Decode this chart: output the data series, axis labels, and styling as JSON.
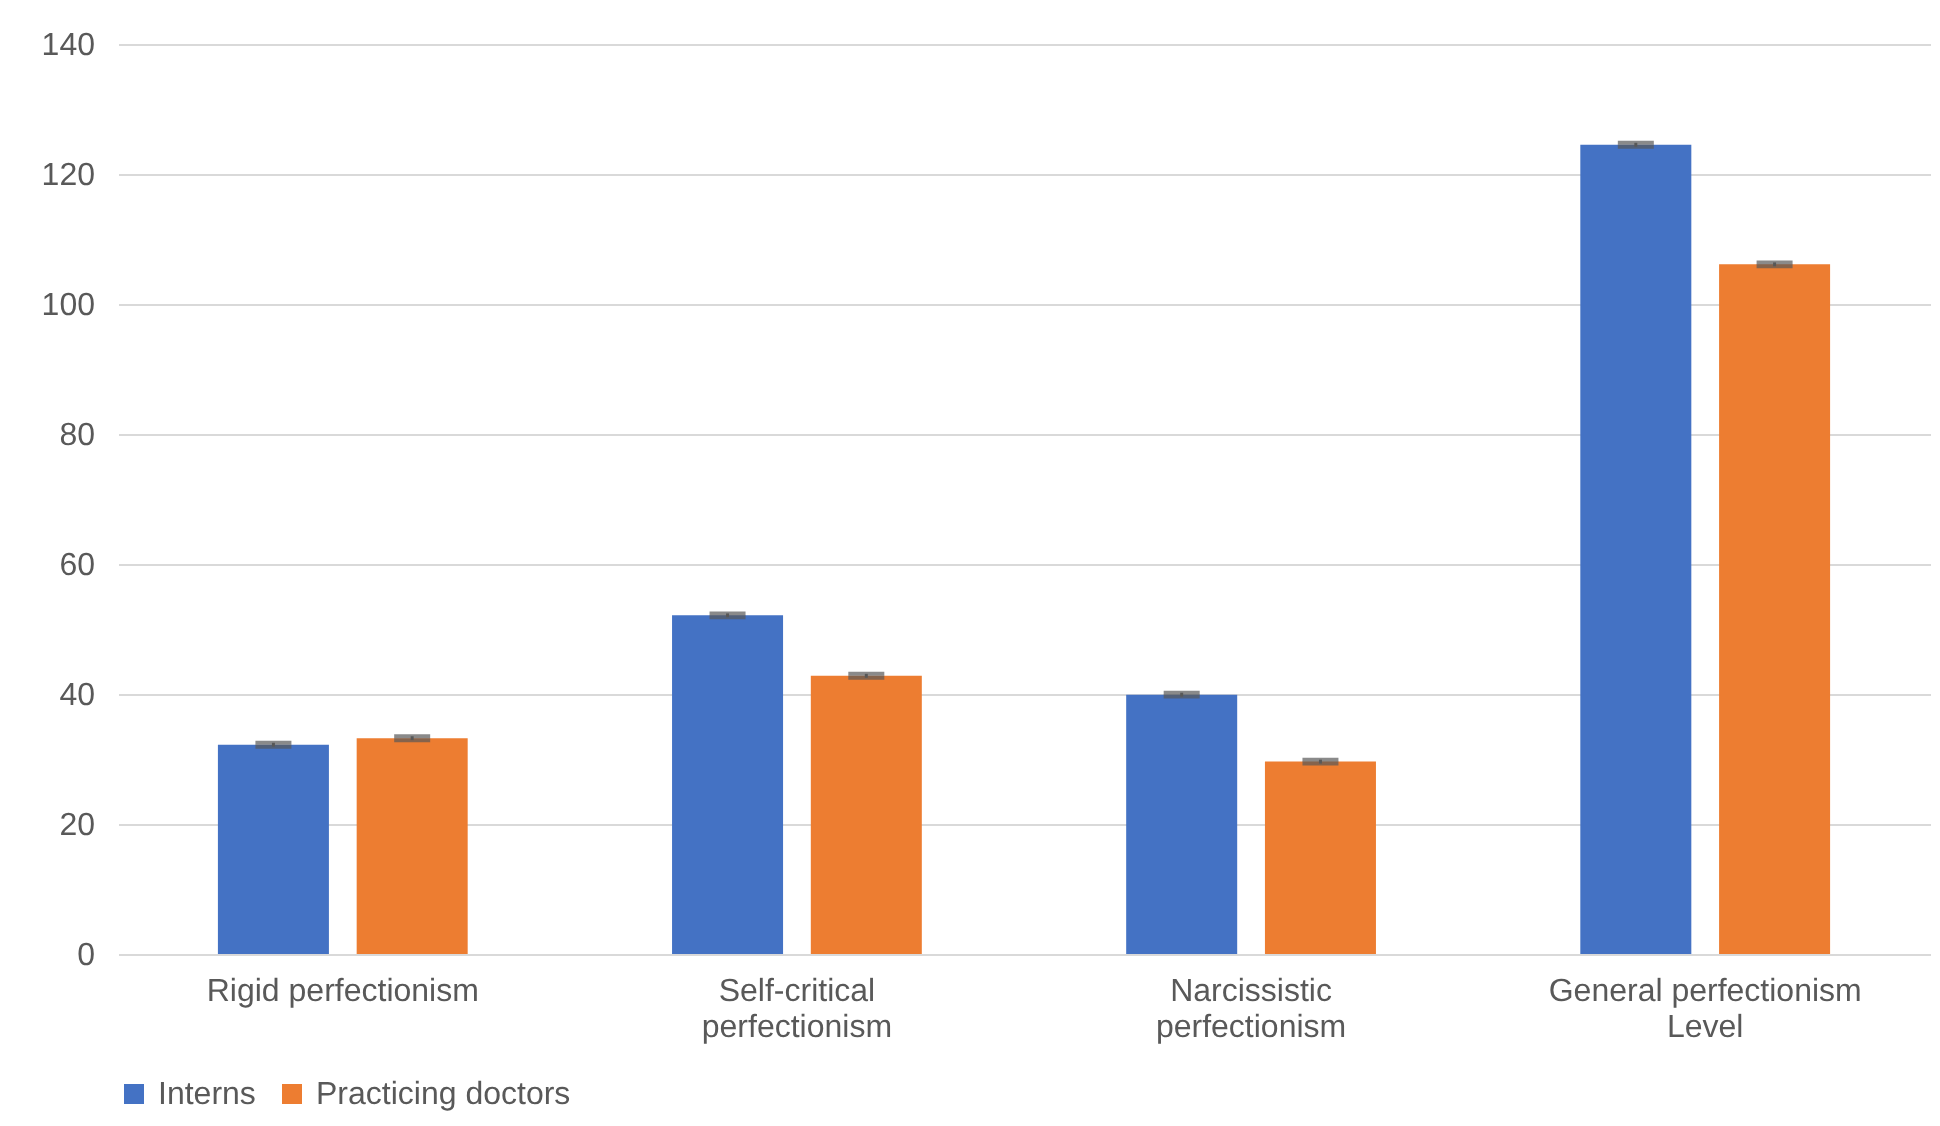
{
  "chart_data": {
    "type": "bar",
    "categories": [
      "Rigid perfectionism",
      "Self-critical perfectionism",
      "Narcissistic perfectionism",
      "General perfectionism Level"
    ],
    "series": [
      {
        "name": "Interns",
        "color": "#4472c4",
        "values": [
          32.2,
          52.1,
          39.9,
          124.5
        ],
        "errors": [
          0.3,
          0.3,
          0.3,
          0.3
        ]
      },
      {
        "name": "Practicing doctors",
        "color": "#ed7d31",
        "values": [
          33.2,
          42.8,
          29.6,
          106.1
        ],
        "errors": [
          0.3,
          0.3,
          0.3,
          0.3
        ]
      }
    ],
    "ylim": [
      0,
      140
    ],
    "yticks": [
      0,
      20,
      40,
      60,
      80,
      100,
      120,
      140
    ],
    "grid": "y",
    "legend": "bottom"
  }
}
